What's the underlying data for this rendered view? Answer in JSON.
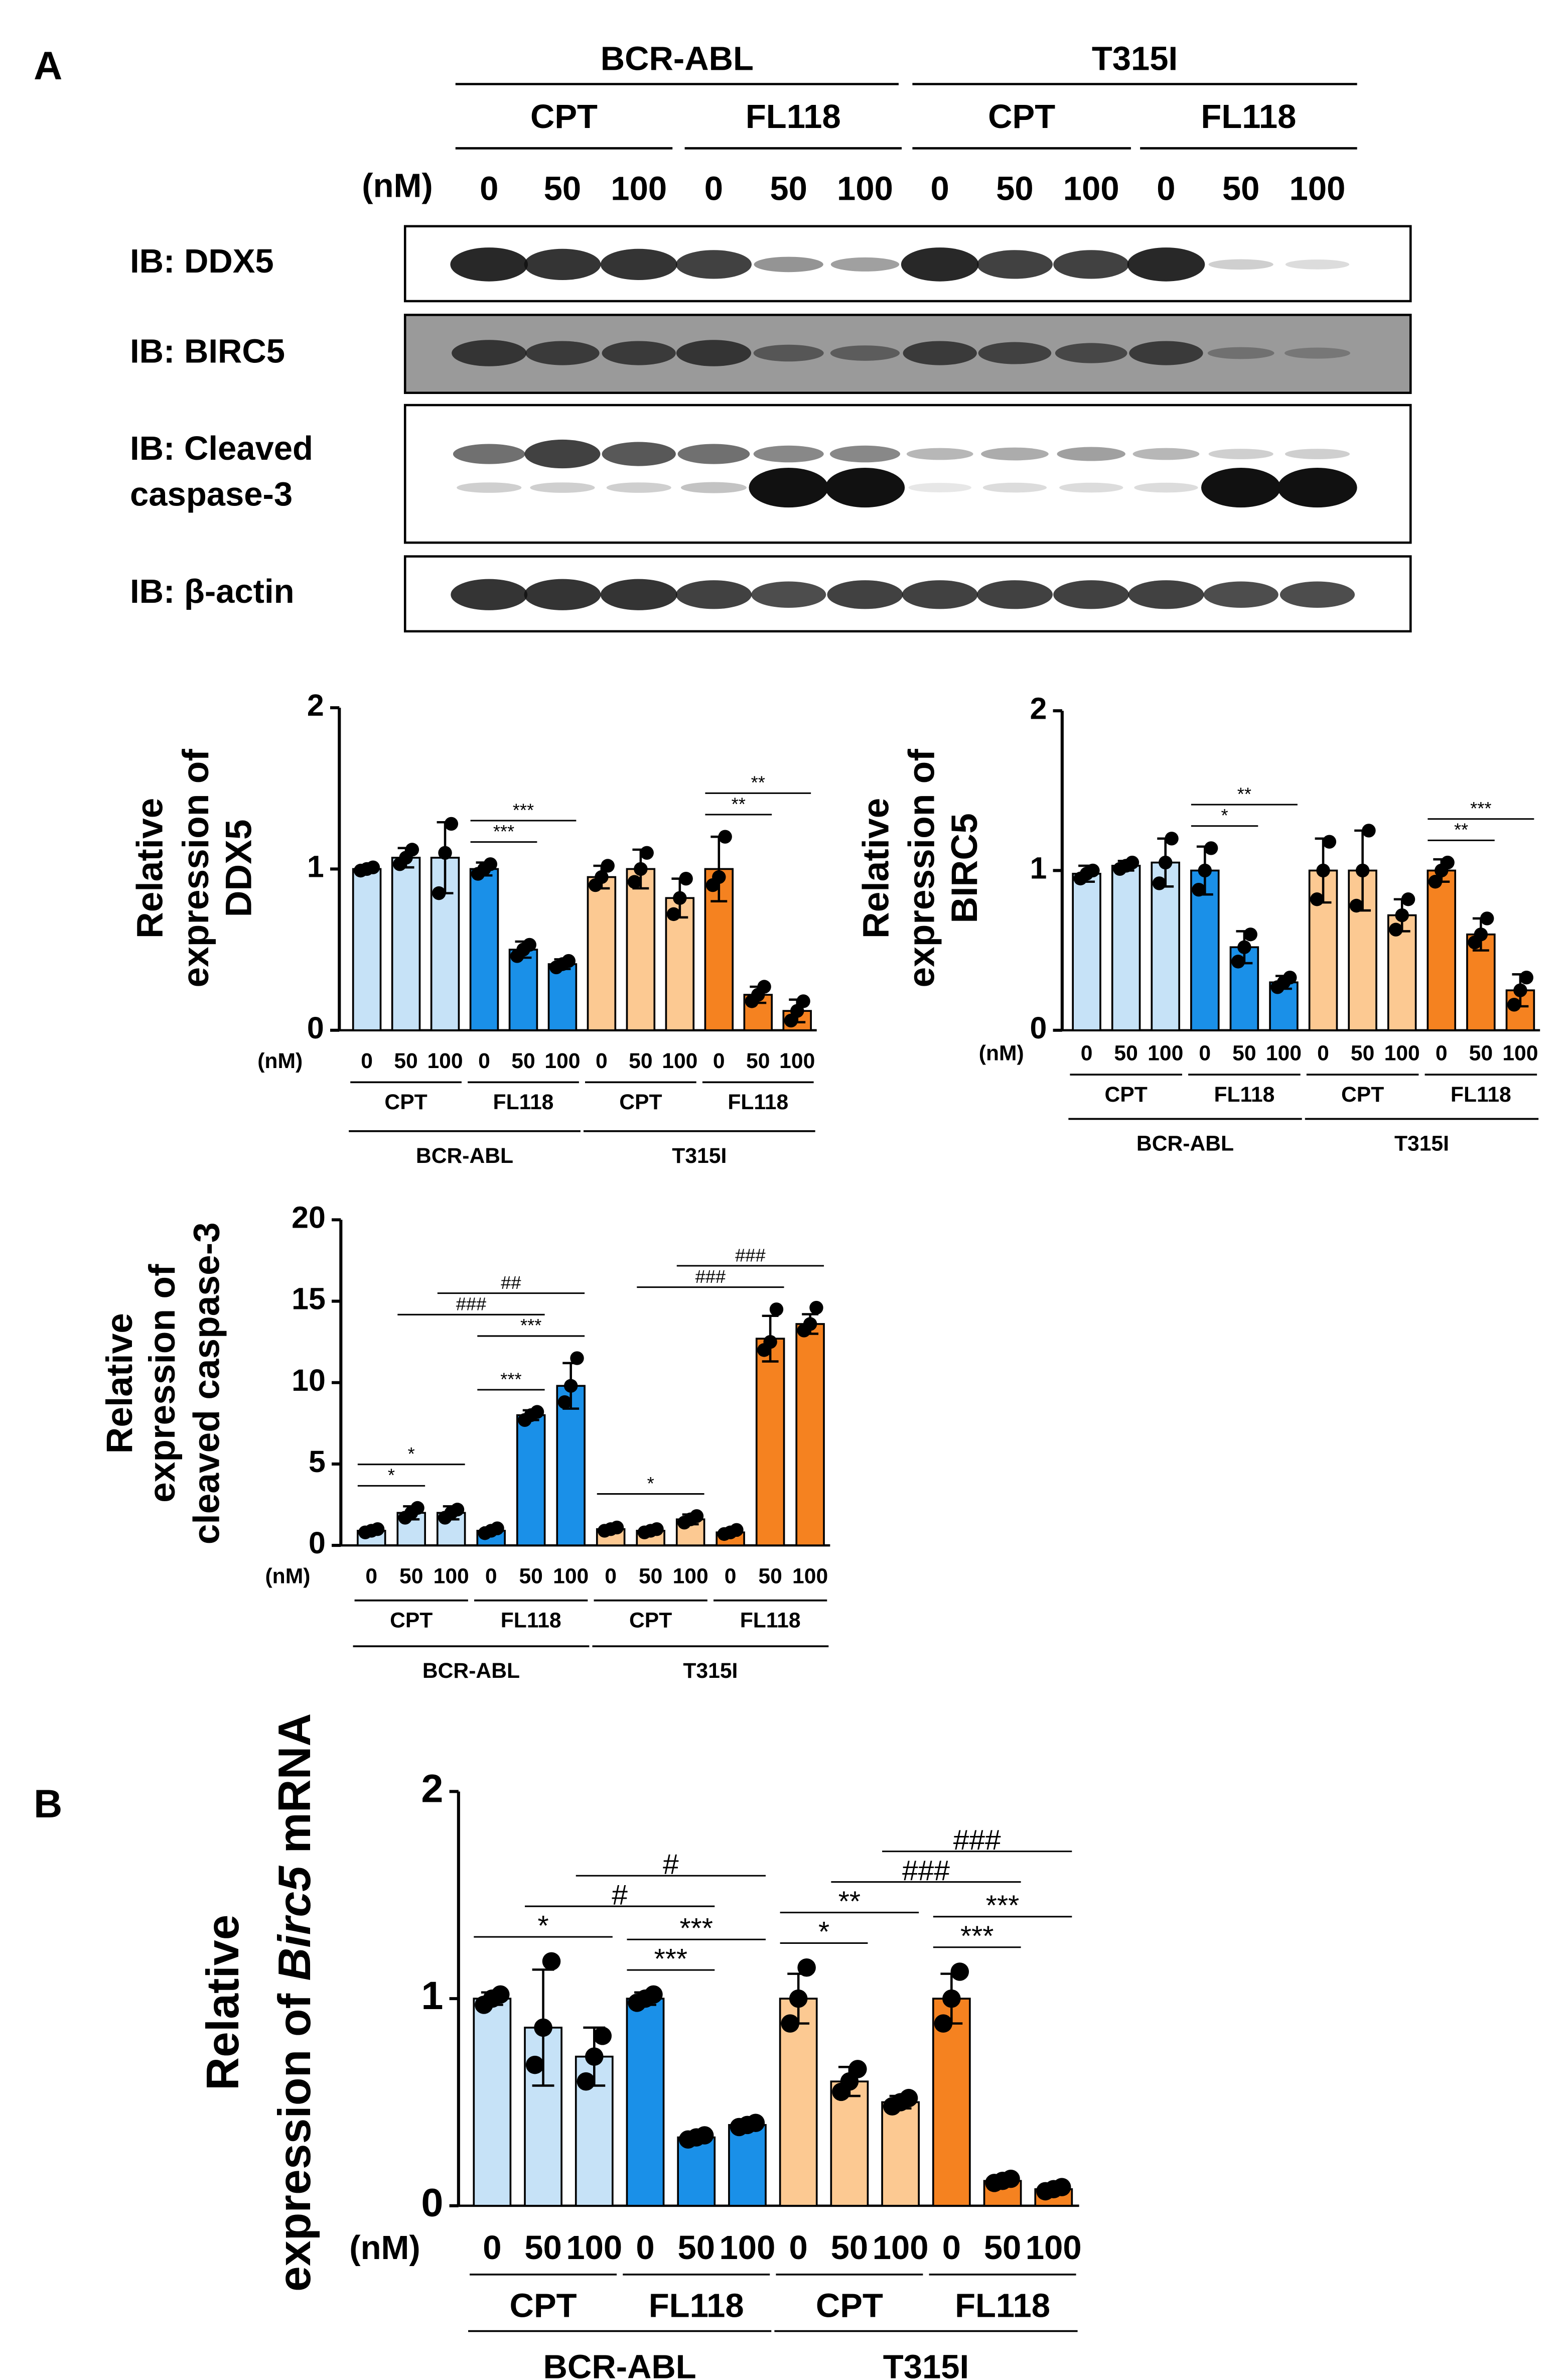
{
  "panels": [
    "A",
    "B"
  ],
  "blot": {
    "cells": [
      "BCR-ABL",
      "T315I"
    ],
    "drugs": [
      "CPT",
      "FL118",
      "CPT",
      "FL118"
    ],
    "unit": "(nM)",
    "doses": [
      0,
      50,
      100,
      0,
      50,
      100,
      0,
      50,
      100,
      0,
      50,
      100
    ],
    "rows": [
      {
        "label": [
          "IB: DDX5"
        ],
        "bands": [
          [
            0.9,
            0.85,
            0.85,
            0.8,
            0.45,
            0.4,
            0.9,
            0.8,
            0.8,
            0.9,
            0.2,
            0.15
          ]
        ]
      },
      {
        "label": [
          "IB: BIRC5"
        ],
        "bands": [
          [
            0.75,
            0.7,
            0.7,
            0.75,
            0.5,
            0.45,
            0.7,
            0.65,
            0.6,
            0.7,
            0.3,
            0.25
          ]
        ]
      },
      {
        "label": [
          "IB: Cleaved",
          "caspase-3"
        ],
        "bands": [
          [
            0.6,
            0.8,
            0.7,
            0.6,
            0.5,
            0.5,
            0.3,
            0.35,
            0.4,
            0.3,
            0.2,
            0.2
          ],
          [
            0.2,
            0.2,
            0.2,
            0.25,
            1,
            1,
            0.1,
            0.15,
            0.15,
            0.15,
            1,
            1
          ]
        ]
      },
      {
        "label": [
          "IB: β-actin"
        ],
        "bands": [
          [
            0.85,
            0.85,
            0.85,
            0.8,
            0.75,
            0.8,
            0.8,
            0.8,
            0.8,
            0.8,
            0.75,
            0.75
          ]
        ]
      }
    ]
  },
  "chart_data": [
    {
      "type": "bar",
      "ylabel": [
        [
          "Relative"
        ],
        [
          "expression of"
        ],
        [
          "DDX5"
        ]
      ],
      "italic": [],
      "categories": [
        "0",
        "50",
        "100",
        "0",
        "50",
        "100",
        "0",
        "50",
        "100",
        "0",
        "50",
        "100"
      ],
      "unit": "(nM)",
      "groups": [
        {
          "label": "CPT",
          "bars": [
            0,
            2
          ]
        },
        {
          "label": "FL118",
          "bars": [
            3,
            5
          ]
        },
        {
          "label": "CPT",
          "bars": [
            6,
            8
          ]
        },
        {
          "label": "FL118",
          "bars": [
            9,
            11
          ]
        }
      ],
      "cells": [
        {
          "label": "BCR-ABL",
          "bars": [
            0,
            5
          ]
        },
        {
          "label": "T315I",
          "bars": [
            6,
            11
          ]
        }
      ],
      "values": [
        1.0,
        1.07,
        1.07,
        1.0,
        0.5,
        0.41,
        0.95,
        1.0,
        0.82,
        1.0,
        0.22,
        0.12
      ],
      "errors": [
        0.02,
        0.06,
        0.22,
        0.04,
        0.05,
        0.03,
        0.07,
        0.12,
        0.12,
        0.2,
        0.05,
        0.07
      ],
      "points": [
        [
          0.99,
          1.0,
          1.01
        ],
        [
          1.03,
          1.07,
          1.12
        ],
        [
          0.85,
          1.1,
          1.28
        ],
        [
          0.97,
          1.0,
          1.03
        ],
        [
          0.46,
          0.5,
          0.53
        ],
        [
          0.39,
          0.41,
          0.43
        ],
        [
          0.9,
          0.95,
          1.02
        ],
        [
          0.92,
          1.0,
          1.1
        ],
        [
          0.72,
          0.82,
          0.94
        ],
        [
          0.9,
          0.95,
          1.2
        ],
        [
          0.18,
          0.22,
          0.27
        ],
        [
          0.06,
          0.12,
          0.18
        ]
      ],
      "colors": [
        "#c6e2f7",
        "#c6e2f7",
        "#c6e2f7",
        "#1a90e8",
        "#1a90e8",
        "#1a90e8",
        "#fcc992",
        "#fcc992",
        "#fcc992",
        "#f58220",
        "#f58220",
        "#f58220"
      ],
      "ylim": [
        0,
        2
      ],
      "yticks": [
        0,
        1,
        2
      ],
      "annotations": [
        {
          "text": "***",
          "bars": [
            3,
            4
          ]
        },
        {
          "text": "***",
          "bars": [
            3,
            5
          ]
        },
        {
          "text": "**",
          "bars": [
            9,
            10
          ]
        },
        {
          "text": "**",
          "bars": [
            9,
            11
          ]
        }
      ]
    },
    {
      "type": "bar",
      "ylabel": [
        [
          "Relative"
        ],
        [
          "expression of"
        ],
        [
          "BIRC5"
        ]
      ],
      "italic": [],
      "categories": [
        "0",
        "50",
        "100",
        "0",
        "50",
        "100",
        "0",
        "50",
        "100",
        "0",
        "50",
        "100"
      ],
      "unit": "(nM)",
      "groups": [
        {
          "label": "CPT",
          "bars": [
            0,
            2
          ]
        },
        {
          "label": "FL118",
          "bars": [
            3,
            5
          ]
        },
        {
          "label": "CPT",
          "bars": [
            6,
            8
          ]
        },
        {
          "label": "FL118",
          "bars": [
            9,
            11
          ]
        }
      ],
      "cells": [
        {
          "label": "BCR-ABL",
          "bars": [
            0,
            5
          ]
        },
        {
          "label": "T315I",
          "bars": [
            6,
            11
          ]
        }
      ],
      "values": [
        0.98,
        1.03,
        1.05,
        1.0,
        0.52,
        0.3,
        1.0,
        1.0,
        0.72,
        1.0,
        0.6,
        0.25
      ],
      "errors": [
        0.05,
        0.03,
        0.15,
        0.15,
        0.1,
        0.04,
        0.2,
        0.25,
        0.1,
        0.07,
        0.1,
        0.1
      ],
      "points": [
        [
          0.95,
          0.98,
          1.0
        ],
        [
          1.01,
          1.03,
          1.05
        ],
        [
          0.92,
          1.05,
          1.2
        ],
        [
          0.88,
          1.0,
          1.14
        ],
        [
          0.43,
          0.52,
          0.6
        ],
        [
          0.27,
          0.3,
          0.33
        ],
        [
          0.82,
          1.0,
          1.18
        ],
        [
          0.78,
          1.0,
          1.25
        ],
        [
          0.63,
          0.72,
          0.82
        ],
        [
          0.93,
          1.0,
          1.05
        ],
        [
          0.55,
          0.6,
          0.7
        ],
        [
          0.16,
          0.25,
          0.33
        ]
      ],
      "colors": [
        "#c6e2f7",
        "#c6e2f7",
        "#c6e2f7",
        "#1a90e8",
        "#1a90e8",
        "#1a90e8",
        "#fcc992",
        "#fcc992",
        "#fcc992",
        "#f58220",
        "#f58220",
        "#f58220"
      ],
      "ylim": [
        0,
        2
      ],
      "yticks": [
        0,
        1,
        2
      ],
      "annotations": [
        {
          "text": "*",
          "bars": [
            3,
            4
          ]
        },
        {
          "text": "**",
          "bars": [
            3,
            5
          ]
        },
        {
          "text": "**",
          "bars": [
            9,
            10
          ]
        },
        {
          "text": "***",
          "bars": [
            9,
            11
          ]
        }
      ]
    },
    {
      "type": "bar",
      "ylabel": [
        [
          "Relative"
        ],
        [
          "expression of"
        ],
        [
          "cleaved caspase-3"
        ]
      ],
      "italic": [],
      "categories": [
        "0",
        "50",
        "100",
        "0",
        "50",
        "100",
        "0",
        "50",
        "100",
        "0",
        "50",
        "100"
      ],
      "unit": "(nM)",
      "groups": [
        {
          "label": "CPT",
          "bars": [
            0,
            2
          ]
        },
        {
          "label": "FL118",
          "bars": [
            3,
            5
          ]
        },
        {
          "label": "CPT",
          "bars": [
            6,
            8
          ]
        },
        {
          "label": "FL118",
          "bars": [
            9,
            11
          ]
        }
      ],
      "cells": [
        {
          "label": "BCR-ABL",
          "bars": [
            0,
            5
          ]
        },
        {
          "label": "T315I",
          "bars": [
            6,
            11
          ]
        }
      ],
      "values": [
        0.9,
        2.0,
        2.0,
        0.9,
        8.0,
        9.8,
        1.0,
        0.9,
        1.6,
        0.8,
        12.7,
        13.6
      ],
      "errors": [
        0.15,
        0.4,
        0.4,
        0.2,
        0.3,
        1.4,
        0.15,
        0.15,
        0.3,
        0.2,
        1.4,
        0.6
      ],
      "points": [
        [
          0.8,
          0.9,
          1.0
        ],
        [
          1.7,
          2.0,
          2.3
        ],
        [
          1.7,
          2.0,
          2.2
        ],
        [
          0.75,
          0.9,
          1.05
        ],
        [
          7.7,
          8.0,
          8.2
        ],
        [
          8.8,
          9.8,
          11.5
        ],
        [
          0.9,
          1.0,
          1.1
        ],
        [
          0.8,
          0.9,
          1.0
        ],
        [
          1.4,
          1.6,
          1.8
        ],
        [
          0.7,
          0.8,
          0.95
        ],
        [
          12.0,
          12.5,
          14.5
        ],
        [
          13.2,
          13.6,
          14.6
        ]
      ],
      "colors": [
        "#c6e2f7",
        "#c6e2f7",
        "#c6e2f7",
        "#1a90e8",
        "#1a90e8",
        "#1a90e8",
        "#fcc992",
        "#fcc992",
        "#fcc992",
        "#f58220",
        "#f58220",
        "#f58220"
      ],
      "ylim": [
        0,
        20
      ],
      "yticks": [
        0,
        5,
        10,
        15,
        20
      ],
      "annotations": [
        {
          "text": "*",
          "bars": [
            0,
            1
          ]
        },
        {
          "text": "*",
          "bars": [
            0,
            2
          ]
        },
        {
          "text": "***",
          "bars": [
            3,
            4
          ]
        },
        {
          "text": "***",
          "bars": [
            3,
            5
          ]
        },
        {
          "text": "###",
          "bars": [
            1,
            4
          ]
        },
        {
          "text": "##",
          "bars": [
            2,
            5
          ]
        },
        {
          "text": "*",
          "bars": [
            6,
            8
          ]
        },
        {
          "text": "###",
          "bars": [
            7,
            10
          ]
        },
        {
          "text": "###",
          "bars": [
            8,
            11
          ]
        }
      ]
    },
    {
      "type": "bar",
      "ylabel": [
        [
          "Relative"
        ],
        [
          "expression of ",
          "Birc5",
          " mRNA"
        ]
      ],
      "italic": [
        "Birc5"
      ],
      "categories": [
        "0",
        "50",
        "100",
        "0",
        "50",
        "100",
        "0",
        "50",
        "100",
        "0",
        "50",
        "100"
      ],
      "unit": "(nM)",
      "groups": [
        {
          "label": "CPT",
          "bars": [
            0,
            2
          ]
        },
        {
          "label": "FL118",
          "bars": [
            3,
            5
          ]
        },
        {
          "label": "CPT",
          "bars": [
            6,
            8
          ]
        },
        {
          "label": "FL118",
          "bars": [
            9,
            11
          ]
        }
      ],
      "cells": [
        {
          "label": "BCR-ABL",
          "bars": [
            0,
            5
          ]
        },
        {
          "label": "T315I",
          "bars": [
            6,
            11
          ]
        }
      ],
      "values": [
        1.0,
        0.86,
        0.72,
        1.0,
        0.33,
        0.39,
        1.0,
        0.6,
        0.5,
        1.0,
        0.12,
        0.08
      ],
      "errors": [
        0.03,
        0.28,
        0.14,
        0.03,
        0.02,
        0.02,
        0.12,
        0.07,
        0.03,
        0.12,
        0.02,
        0.02
      ],
      "points": [
        [
          0.97,
          1.0,
          1.02
        ],
        [
          0.68,
          0.86,
          1.18
        ],
        [
          0.6,
          0.72,
          0.82
        ],
        [
          0.98,
          1.0,
          1.02
        ],
        [
          0.32,
          0.33,
          0.34
        ],
        [
          0.38,
          0.39,
          0.4
        ],
        [
          0.88,
          1.0,
          1.15
        ],
        [
          0.55,
          0.6,
          0.66
        ],
        [
          0.48,
          0.5,
          0.52
        ],
        [
          0.88,
          1.0,
          1.13
        ],
        [
          0.11,
          0.12,
          0.13
        ],
        [
          0.07,
          0.08,
          0.09
        ]
      ],
      "colors": [
        "#c6e2f7",
        "#c6e2f7",
        "#c6e2f7",
        "#1a90e8",
        "#1a90e8",
        "#1a90e8",
        "#fcc992",
        "#fcc992",
        "#fcc992",
        "#f58220",
        "#f58220",
        "#f58220"
      ],
      "ylim": [
        0,
        2
      ],
      "yticks": [
        0,
        1,
        2
      ],
      "annotations": [
        {
          "text": "*",
          "bars": [
            0,
            2
          ]
        },
        {
          "text": "***",
          "bars": [
            3,
            4
          ]
        },
        {
          "text": "***",
          "bars": [
            3,
            5
          ]
        },
        {
          "text": "#",
          "bars": [
            1,
            4
          ]
        },
        {
          "text": "#",
          "bars": [
            2,
            5
          ]
        },
        {
          "text": "*",
          "bars": [
            6,
            7
          ]
        },
        {
          "text": "**",
          "bars": [
            6,
            8
          ]
        },
        {
          "text": "***",
          "bars": [
            9,
            10
          ]
        },
        {
          "text": "***",
          "bars": [
            9,
            11
          ]
        },
        {
          "text": "###",
          "bars": [
            7,
            10
          ]
        },
        {
          "text": "###",
          "bars": [
            8,
            11
          ]
        }
      ]
    }
  ]
}
